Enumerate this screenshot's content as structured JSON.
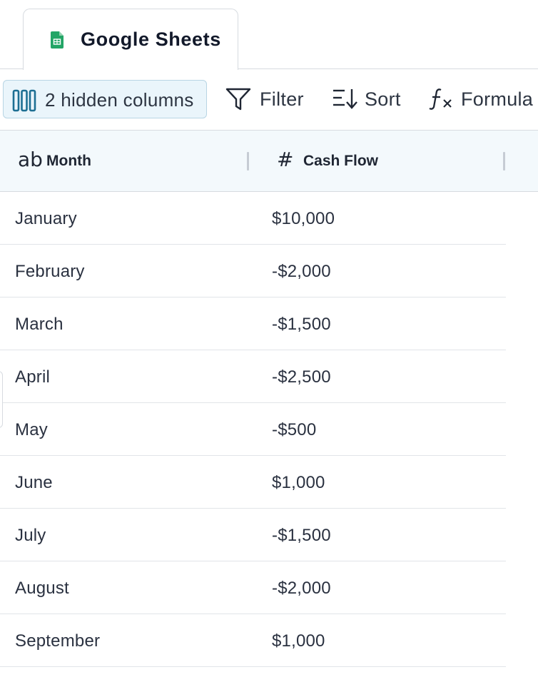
{
  "tab": {
    "label": "Google Sheets",
    "icon": "google-sheets-icon",
    "icon_color": "#23a566"
  },
  "toolbar": {
    "hidden_columns_label": "2 hidden columns",
    "filter_label": "Filter",
    "sort_label": "Sort",
    "formula_label": "Formula"
  },
  "table": {
    "columns": [
      {
        "type_icon": "ab",
        "label": "Month"
      },
      {
        "type_icon": "#",
        "label": "Cash Flow"
      }
    ],
    "rows": [
      {
        "month": "January",
        "cash_flow": "$10,000"
      },
      {
        "month": "February",
        "cash_flow": "-$2,000"
      },
      {
        "month": "March",
        "cash_flow": "-$1,500"
      },
      {
        "month": "April",
        "cash_flow": "-$2,500"
      },
      {
        "month": "May",
        "cash_flow": "-$500"
      },
      {
        "month": "June",
        "cash_flow": "$1,000"
      },
      {
        "month": "July",
        "cash_flow": "-$1,500"
      },
      {
        "month": "August",
        "cash_flow": "-$2,000"
      },
      {
        "month": "September",
        "cash_flow": "$1,000"
      }
    ]
  },
  "colors": {
    "accent": "#1d6f93",
    "header_bg": "#f3f9fc",
    "button_bg": "#eaf5fb"
  }
}
